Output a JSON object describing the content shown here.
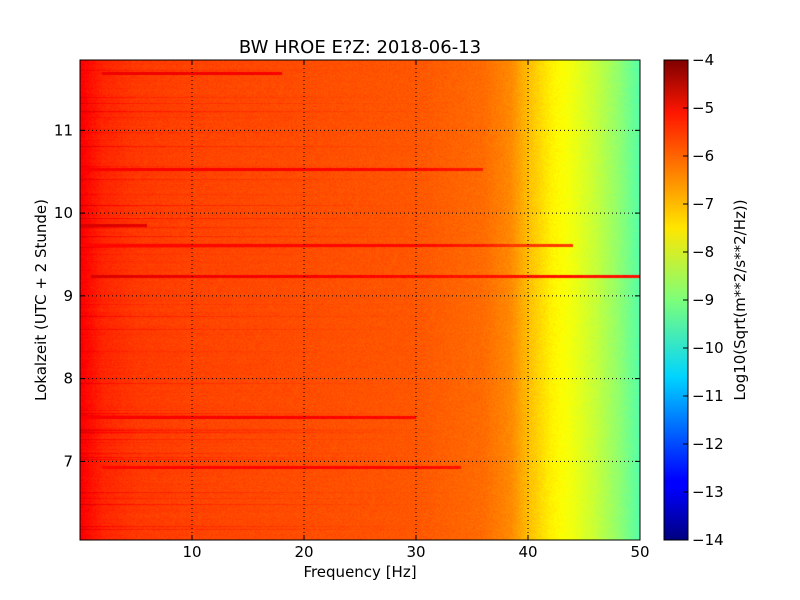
{
  "chart_data": {
    "type": "heatmap",
    "title": "BW HROE E?Z: 2018-06-13",
    "xlabel": "Frequency [Hz]",
    "ylabel": "Lokalzeit (UTC + 2 Stunde)",
    "xlim": [
      0,
      50
    ],
    "ylim": [
      11.85,
      6.05
    ],
    "y_inverted": true,
    "xticks": [
      10,
      20,
      30,
      40,
      50
    ],
    "yticks": [
      7,
      8,
      9,
      10,
      11
    ],
    "grid": true,
    "colorbar": {
      "label": "Log10(Sqrt(m**2/s**2/Hz))",
      "range": [
        -14,
        -4
      ],
      "ticks": [
        -4,
        -5,
        -6,
        -7,
        -8,
        -9,
        -10,
        -11,
        -12,
        -13,
        -14
      ],
      "colormap": "jet"
    },
    "background_profile": {
      "frequency_hz": [
        0,
        2,
        5,
        10,
        20,
        30,
        36,
        38.5,
        40,
        42,
        44,
        46,
        48,
        50
      ],
      "log10_amplitude": [
        -5.2,
        -5.6,
        -5.8,
        -5.9,
        -6.0,
        -6.1,
        -6.3,
        -6.6,
        -7.1,
        -7.6,
        -7.9,
        -8.3,
        -8.8,
        -9.4
      ]
    },
    "features": [
      {
        "kind": "horizontal_band",
        "time": 9.25,
        "f_start": 1,
        "f_end": 50,
        "level": -5.3
      },
      {
        "kind": "horizontal_band",
        "time": 7.55,
        "f_start": 0,
        "f_end": 30,
        "level": -5.6
      },
      {
        "kind": "horizontal_band",
        "time": 6.95,
        "f_start": 2,
        "f_end": 34,
        "level": -5.7
      },
      {
        "kind": "horizontal_band",
        "time": 9.63,
        "f_start": 0,
        "f_end": 44,
        "level": -5.7
      },
      {
        "kind": "horizontal_band",
        "time": 10.55,
        "f_start": 0,
        "f_end": 36,
        "level": -5.6
      },
      {
        "kind": "horizontal_band",
        "time": 9.87,
        "f_start": 0,
        "f_end": 6,
        "level": -5.3
      },
      {
        "kind": "horizontal_band",
        "time": 11.7,
        "f_start": 2,
        "f_end": 18,
        "level": -5.5
      },
      {
        "kind": "vertical_line",
        "f": 5,
        "t_start": 6.05,
        "t_end": 11.85,
        "level": -5.7
      },
      {
        "kind": "vertical_line",
        "f": 40,
        "t_start": 7.1,
        "t_end": 8.0,
        "level": -5.9
      },
      {
        "kind": "vertical_line",
        "f": 37.5,
        "t_start": 9.6,
        "t_end": 10.45,
        "level": -5.9
      },
      {
        "kind": "vertical_line",
        "f": 25,
        "t_start": 9.15,
        "t_end": 9.4,
        "level": -5.7
      }
    ]
  }
}
